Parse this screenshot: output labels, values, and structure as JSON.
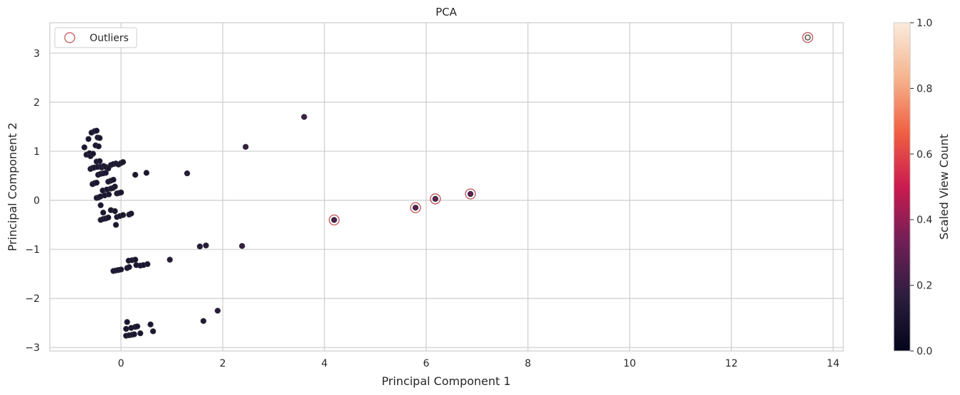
{
  "chart_data": {
    "type": "scatter",
    "title": "PCA",
    "xlabel": "Principal Component 1",
    "ylabel": "Principal Component 2",
    "xlim": [
      -1.4,
      14.2
    ],
    "ylim": [
      -3.07,
      3.62
    ],
    "xticks": [
      0,
      2,
      4,
      6,
      8,
      10,
      12,
      14
    ],
    "yticks": [
      -3,
      -2,
      -1,
      0,
      1,
      2,
      3
    ],
    "xtick_labels": [
      "0",
      "2",
      "4",
      "6",
      "8",
      "10",
      "12",
      "14"
    ],
    "ytick_labels": [
      "−3",
      "−2",
      "−1",
      "0",
      "1",
      "2",
      "3"
    ],
    "grid": true,
    "legend": {
      "position": "top-left",
      "entries": [
        "Outliers"
      ]
    },
    "colorbar": {
      "label": "Scaled View Count",
      "range": [
        0.0,
        1.0
      ],
      "ticks": [
        0.0,
        0.2,
        0.4,
        0.6,
        0.8,
        1.0
      ],
      "tick_labels": [
        "0.0",
        "0.2",
        "0.4",
        "0.6",
        "0.8",
        "1.0"
      ],
      "colors": [
        "#03051a",
        "#2c1e3e",
        "#711f57",
        "#cb1b4f",
        "#f06043",
        "#f6b48e",
        "#faebdd"
      ]
    },
    "series": [
      {
        "name": "points",
        "points": [
          [
            -0.72,
            1.08,
            0.1
          ],
          [
            -0.68,
            0.93,
            0.1
          ],
          [
            -0.64,
            1.25,
            0.1
          ],
          [
            -0.62,
            0.96,
            0.1
          ],
          [
            -0.6,
            0.9,
            0.1
          ],
          [
            -0.58,
            1.38,
            0.1
          ],
          [
            -0.55,
            0.95,
            0.1
          ],
          [
            -0.52,
            1.41,
            0.1
          ],
          [
            -0.5,
            1.12,
            0.1
          ],
          [
            -0.48,
            1.42,
            0.1
          ],
          [
            -0.46,
            1.28,
            0.1
          ],
          [
            -0.44,
            1.1,
            0.1
          ],
          [
            -0.42,
            1.27,
            0.1
          ],
          [
            -0.6,
            0.64,
            0.1
          ],
          [
            -0.56,
            0.66,
            0.1
          ],
          [
            -0.52,
            0.67,
            0.1
          ],
          [
            -0.48,
            0.79,
            0.1
          ],
          [
            -0.46,
            0.68,
            0.1
          ],
          [
            -0.42,
            0.8,
            0.1
          ],
          [
            -0.4,
            0.69,
            0.1
          ],
          [
            -0.38,
            0.67,
            0.1
          ],
          [
            -0.34,
            0.7,
            0.1
          ],
          [
            -0.3,
            0.68,
            0.1
          ],
          [
            -0.25,
            0.65,
            0.1
          ],
          [
            -0.2,
            0.72,
            0.1
          ],
          [
            -0.15,
            0.74,
            0.1
          ],
          [
            -0.1,
            0.75,
            0.1
          ],
          [
            -0.05,
            0.73,
            0.1
          ],
          [
            0.0,
            0.76,
            0.1
          ],
          [
            0.04,
            0.78,
            0.1
          ],
          [
            -0.56,
            0.33,
            0.1
          ],
          [
            -0.52,
            0.35,
            0.1
          ],
          [
            -0.48,
            0.36,
            0.1
          ],
          [
            -0.45,
            0.52,
            0.1
          ],
          [
            -0.4,
            0.54,
            0.1
          ],
          [
            -0.35,
            0.55,
            0.1
          ],
          [
            -0.3,
            0.56,
            0.1
          ],
          [
            -0.25,
            0.38,
            0.1
          ],
          [
            -0.2,
            0.4,
            0.1
          ],
          [
            -0.15,
            0.42,
            0.1
          ],
          [
            -0.48,
            0.05,
            0.1
          ],
          [
            -0.44,
            0.06,
            0.1
          ],
          [
            -0.4,
            0.08,
            0.1
          ],
          [
            -0.36,
            0.2,
            0.1
          ],
          [
            -0.32,
            0.1,
            0.1
          ],
          [
            -0.28,
            0.22,
            0.1
          ],
          [
            -0.24,
            0.12,
            0.1
          ],
          [
            -0.2,
            0.24,
            0.1
          ],
          [
            -0.16,
            0.25,
            0.1
          ],
          [
            -0.12,
            0.28,
            0.1
          ],
          [
            -0.08,
            0.14,
            0.1
          ],
          [
            -0.04,
            0.15,
            0.1
          ],
          [
            0.0,
            0.16,
            0.1
          ],
          [
            -0.4,
            -0.1,
            0.1
          ],
          [
            -0.35,
            -0.25,
            0.1
          ],
          [
            -0.4,
            -0.4,
            0.1
          ],
          [
            -0.35,
            -0.38,
            0.1
          ],
          [
            -0.3,
            -0.37,
            0.1
          ],
          [
            -0.25,
            -0.35,
            0.1
          ],
          [
            -0.2,
            -0.2,
            0.1
          ],
          [
            -0.12,
            -0.22,
            0.1
          ],
          [
            -0.08,
            -0.34,
            0.1
          ],
          [
            -0.02,
            -0.32,
            0.1
          ],
          [
            0.04,
            -0.3,
            0.1
          ],
          [
            0.16,
            -0.29,
            0.1
          ],
          [
            0.2,
            -0.27,
            0.1
          ],
          [
            -0.1,
            -0.5,
            0.1
          ],
          [
            0.28,
            0.52,
            0.1
          ],
          [
            0.5,
            0.56,
            0.1
          ],
          [
            1.3,
            0.55,
            0.15
          ],
          [
            -0.15,
            -1.44,
            0.1
          ],
          [
            -0.1,
            -1.43,
            0.1
          ],
          [
            -0.05,
            -1.42,
            0.1
          ],
          [
            0.0,
            -1.41,
            0.1
          ],
          [
            0.12,
            -1.38,
            0.1
          ],
          [
            0.16,
            -1.36,
            0.1
          ],
          [
            0.15,
            -1.23,
            0.1
          ],
          [
            0.22,
            -1.22,
            0.1
          ],
          [
            0.28,
            -1.21,
            0.1
          ],
          [
            0.3,
            -1.32,
            0.1
          ],
          [
            0.38,
            -1.33,
            0.1
          ],
          [
            0.44,
            -1.32,
            0.1
          ],
          [
            0.52,
            -1.3,
            0.1
          ],
          [
            0.96,
            -1.21,
            0.15
          ],
          [
            0.12,
            -2.48,
            0.1
          ],
          [
            0.1,
            -2.62,
            0.1
          ],
          [
            0.2,
            -2.6,
            0.1
          ],
          [
            0.28,
            -2.58,
            0.1
          ],
          [
            0.32,
            -2.57,
            0.1
          ],
          [
            0.1,
            -2.76,
            0.1
          ],
          [
            0.16,
            -2.75,
            0.1
          ],
          [
            0.22,
            -2.74,
            0.1
          ],
          [
            0.26,
            -2.73,
            0.1
          ],
          [
            0.38,
            -2.71,
            0.1
          ],
          [
            0.58,
            -2.53,
            0.1
          ],
          [
            0.63,
            -2.67,
            0.1
          ],
          [
            1.62,
            -2.46,
            0.12
          ],
          [
            1.9,
            -2.25,
            0.15
          ],
          [
            1.55,
            -0.94,
            0.15
          ],
          [
            1.67,
            -0.92,
            0.15
          ],
          [
            2.38,
            -0.93,
            0.2
          ],
          [
            2.45,
            1.09,
            0.2
          ],
          [
            3.6,
            1.7,
            0.22
          ],
          [
            4.19,
            -0.4,
            0.25
          ],
          [
            5.79,
            -0.15,
            0.28
          ],
          [
            6.18,
            0.03,
            0.3
          ],
          [
            6.87,
            0.13,
            0.32
          ],
          [
            13.5,
            3.32,
            1.0
          ]
        ]
      }
    ],
    "outliers": [
      [
        4.19,
        -0.4
      ],
      [
        5.79,
        -0.15
      ],
      [
        6.18,
        0.03
      ],
      [
        6.87,
        0.13
      ],
      [
        13.5,
        3.32
      ]
    ]
  }
}
